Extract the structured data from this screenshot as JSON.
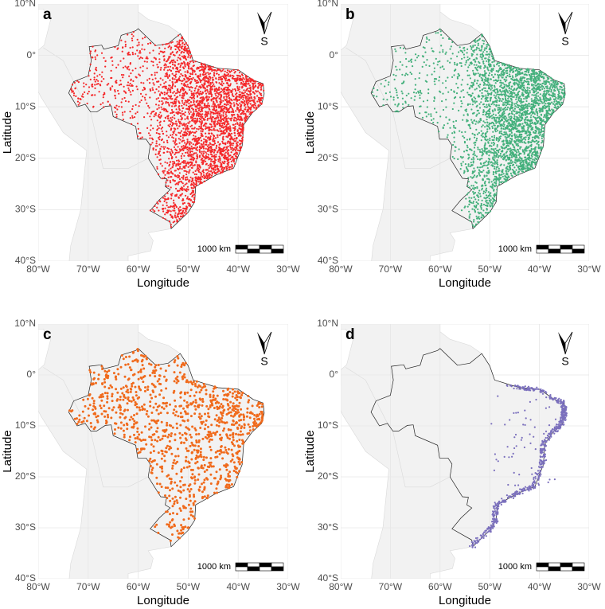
{
  "panels": [
    {
      "label": "a",
      "color": "#f5282a"
    },
    {
      "label": "b",
      "color": "#44b07c"
    },
    {
      "label": "c",
      "color": "#f06a1c"
    },
    {
      "label": "d",
      "color": "#7b70bd"
    }
  ],
  "xlabel": "Longitude",
  "ylabel": "Latitude",
  "xlim": [
    -80,
    -30
  ],
  "ylim": [
    -40,
    10
  ],
  "xticks": [
    {
      "value": -80,
      "label": "80°W"
    },
    {
      "value": -70,
      "label": "70°W"
    },
    {
      "value": -60,
      "label": "60°W"
    },
    {
      "value": -50,
      "label": "50°W"
    },
    {
      "value": -40,
      "label": "40°W"
    },
    {
      "value": -30,
      "label": "30°W"
    }
  ],
  "yticks": [
    {
      "value": 10,
      "label": "10°N"
    },
    {
      "value": 0,
      "label": "0°"
    },
    {
      "value": -10,
      "label": "10°S"
    },
    {
      "value": -20,
      "label": "20°S"
    },
    {
      "value": -30,
      "label": "30°S"
    },
    {
      "value": -40,
      "label": "40°S"
    }
  ],
  "scale_bar": "1000 km",
  "north_label": "S"
}
